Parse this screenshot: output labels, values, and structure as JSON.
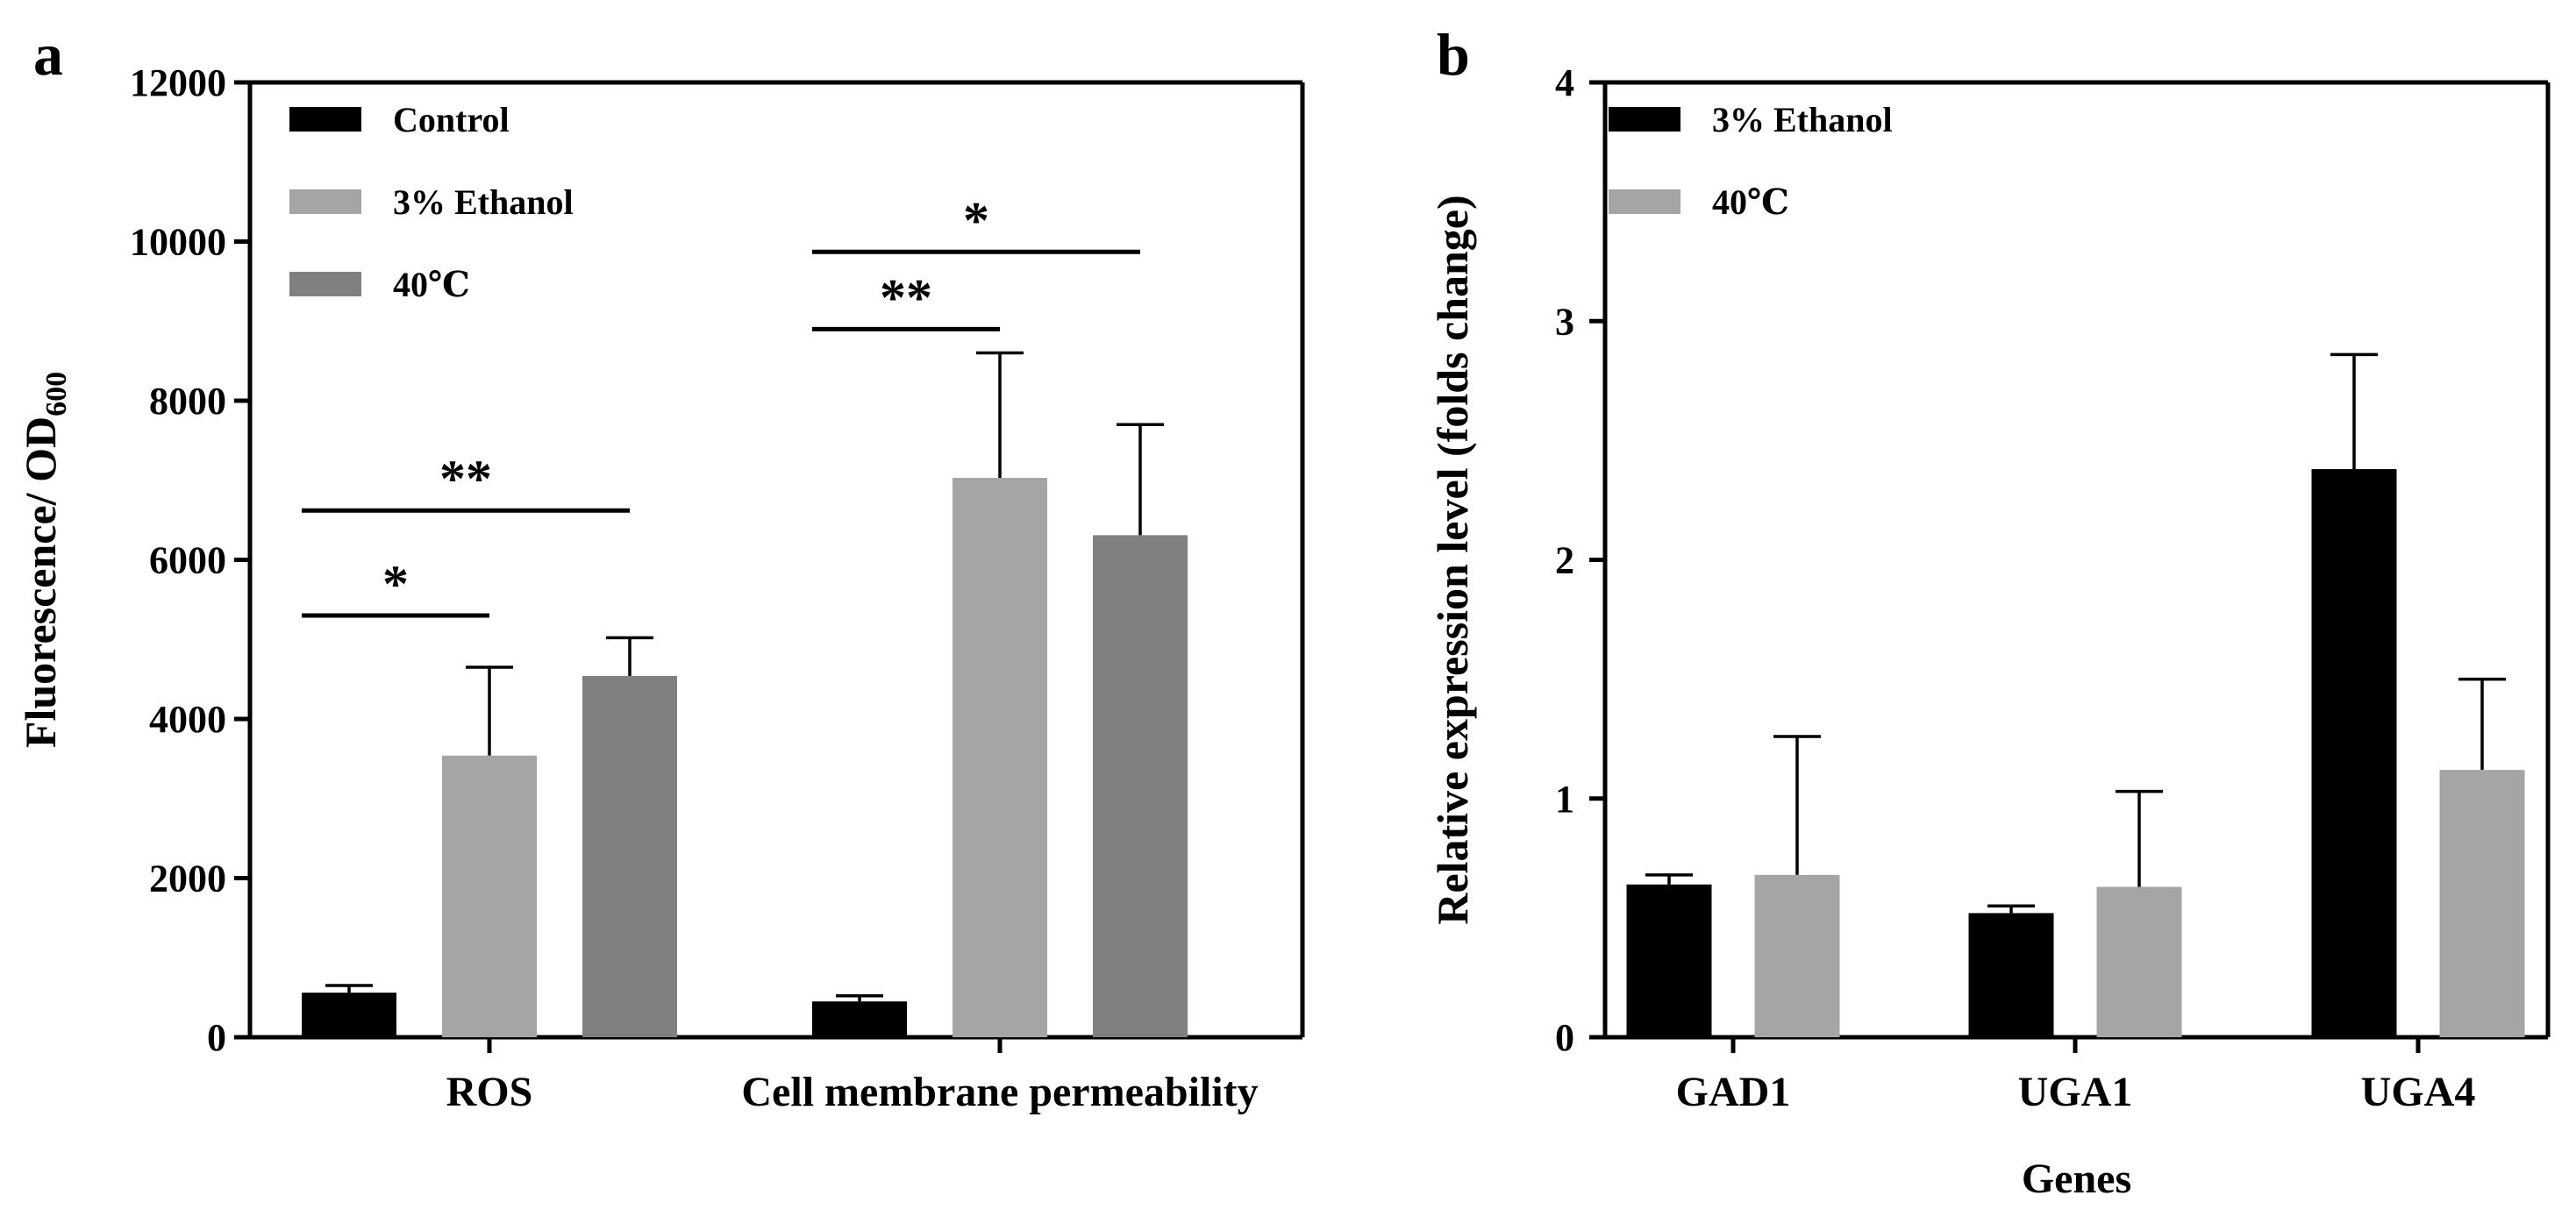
{
  "panels": {
    "a": {
      "label": "a",
      "ylabel_main": "Fluorescence/ OD",
      "ylabel_sub": "600"
    },
    "b": {
      "label": "b",
      "ylabel": "Relative expression level (folds change)",
      "xlabel": "Genes"
    }
  },
  "colors": {
    "control": "#000000",
    "ethanol": "#a5a5a7",
    "heat": "#808080"
  },
  "chart_data": [
    {
      "id": "a",
      "type": "bar",
      "title": "",
      "xlabel": "",
      "ylabel": "Fluorescence/ OD600",
      "ylim": [
        0,
        12000
      ],
      "yticks": [
        0,
        2000,
        4000,
        6000,
        8000,
        10000,
        12000
      ],
      "categories": [
        "ROS",
        "Cell membrane permeability"
      ],
      "legend_position": "top-left",
      "series": [
        {
          "name": "Control",
          "color": "#000000",
          "values": [
            560,
            450
          ],
          "errors": [
            90,
            70
          ]
        },
        {
          "name": "3% Ethanol",
          "color": "#a5a5a7",
          "values": [
            3540,
            7030
          ],
          "errors": [
            1110,
            1570
          ]
        },
        {
          "name": "40℃",
          "color": "#808080",
          "values": [
            4540,
            6310
          ],
          "errors": [
            480,
            1390
          ]
        }
      ],
      "significance": [
        {
          "category": "ROS",
          "from_series": 0,
          "to_series": 1,
          "label": "*",
          "y": 5300
        },
        {
          "category": "ROS",
          "from_series": 0,
          "to_series": 2,
          "label": "**",
          "y": 6620
        },
        {
          "category": "Cell membrane permeability",
          "from_series": 0,
          "to_series": 1,
          "label": "**",
          "y": 8900
        },
        {
          "category": "Cell membrane permeability",
          "from_series": 0,
          "to_series": 2,
          "label": "*",
          "y": 9870
        }
      ]
    },
    {
      "id": "b",
      "type": "bar",
      "title": "",
      "xlabel": "Genes",
      "ylabel": "Relative expression level (folds change)",
      "ylim": [
        0,
        4
      ],
      "yticks": [
        0,
        1,
        2,
        3,
        4
      ],
      "categories": [
        "GAD1",
        "UGA1",
        "UGA4"
      ],
      "legend_position": "top-left",
      "series": [
        {
          "name": "3% Ethanol",
          "color": "#000000",
          "values": [
            0.64,
            0.52,
            2.38
          ],
          "errors": [
            0.04,
            0.03,
            0.48
          ]
        },
        {
          "name": "40℃",
          "color": "#a5a5a7",
          "values": [
            0.68,
            0.63,
            1.12
          ],
          "errors": [
            0.58,
            0.4,
            0.38
          ]
        }
      ]
    }
  ]
}
